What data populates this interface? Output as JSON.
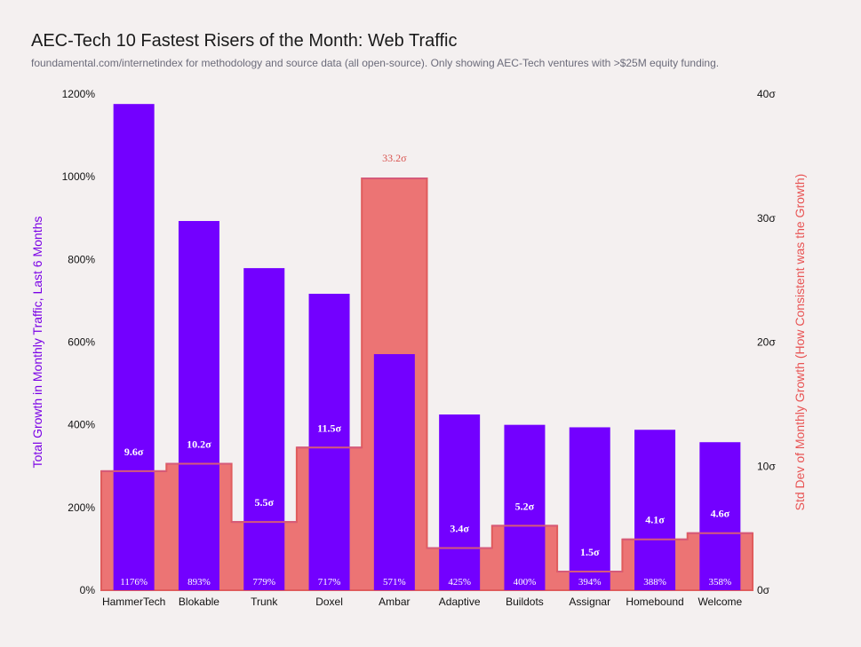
{
  "chart_data": {
    "type": "bar",
    "title": "AEC-Tech 10 Fastest Risers of the Month: Web Traffic",
    "subtitle": "foundamental.com/internetindex for methodology and source data (all open-source). Only showing AEC-Tech ventures with >$25M equity funding.",
    "categories": [
      "HammerTech",
      "Blokable",
      "Trunk",
      "Doxel",
      "Ambar",
      "Adaptive",
      "Buildots",
      "Assignar",
      "Homebound",
      "Welcome"
    ],
    "series": [
      {
        "values": [
          1176,
          893,
          779,
          717,
          571,
          425,
          400,
          394,
          388,
          358
        ],
        "labels": [
          "1176%",
          "893%",
          "779%",
          "717%",
          "571%",
          "425%",
          "400%",
          "394%",
          "388%",
          "358%"
        ],
        "color": "#7300ff",
        "axis": "left"
      },
      {
        "values": [
          9.6,
          10.2,
          5.5,
          11.5,
          33.2,
          3.4,
          5.2,
          1.5,
          4.1,
          4.6
        ],
        "labels": [
          "9.6σ",
          "10.2σ",
          "5.5σ",
          "11.5σ",
          "33.2σ",
          "3.4σ",
          "5.2σ",
          "1.5σ",
          "4.1σ",
          "4.6σ"
        ],
        "color": "#ec7474",
        "axis": "right",
        "style": "step-area"
      }
    ],
    "ylabel": "Total Growth in Monthly Traffic, Last 6 Months",
    "ylabel_right": "Std Dev of Monthly Growth (How Consistent was the Growth)",
    "ylim": [
      0,
      1200
    ],
    "ylim_right": [
      0,
      40
    ],
    "yticks": [
      "0%",
      "200%",
      "400%",
      "600%",
      "800%",
      "1000%",
      "1200%"
    ],
    "yticks_right": [
      "0σ",
      "10σ",
      "20σ",
      "30σ",
      "40σ"
    ],
    "grid": false,
    "legend": "none"
  }
}
